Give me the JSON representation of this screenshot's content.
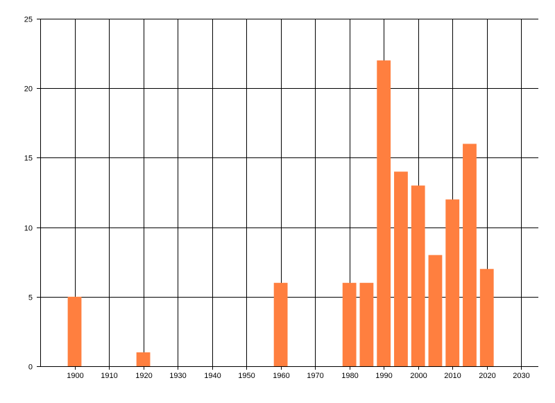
{
  "chart_data": {
    "type": "bar",
    "title": "",
    "xlabel": "",
    "ylabel": "",
    "x": [
      1900,
      1920,
      1960,
      1980,
      1985,
      1990,
      1995,
      2000,
      2005,
      2010,
      2015,
      2020
    ],
    "values": [
      5,
      1,
      6,
      6,
      6,
      22,
      14,
      13,
      8,
      12,
      16,
      7
    ],
    "bar_width_years": 4,
    "xlim": [
      1890,
      2035
    ],
    "ylim": [
      0,
      25
    ],
    "xticks": [
      1900,
      1910,
      1920,
      1930,
      1940,
      1950,
      1960,
      1970,
      1980,
      1990,
      2000,
      2010,
      2020,
      2030
    ],
    "xtick_labels": [
      "1900",
      "1910",
      "1920",
      "1930",
      "1940",
      "1950",
      "1960",
      "1970",
      "1980",
      "1990",
      "2000",
      "2010",
      "2020",
      "2030"
    ],
    "yticks": [
      0,
      5,
      10,
      15,
      20,
      25
    ],
    "ytick_labels": [
      "0",
      "5",
      "10",
      "15",
      "20",
      "25"
    ],
    "grid": true,
    "legend": "none",
    "colors": {
      "bar": "#ff7f3f",
      "grid": "#000000",
      "axis": "#000000"
    }
  }
}
